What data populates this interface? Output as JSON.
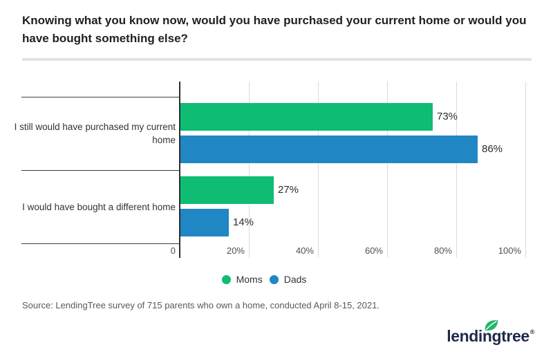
{
  "header": {
    "title": "Knowing what you know now, would you have purchased your current home or would you have bought something else?"
  },
  "chart_data": {
    "type": "bar",
    "orientation": "horizontal",
    "title": "Knowing what you know now, would you have purchased your current home or would you have bought something else?",
    "categories": [
      "I still would have purchased my current home",
      "I would have bought a different home"
    ],
    "series": [
      {
        "name": "Moms",
        "color": "#0ebc74",
        "values": [
          73,
          27
        ],
        "display": [
          "73%",
          "27%"
        ]
      },
      {
        "name": "Dads",
        "color": "#2186c4",
        "values": [
          86,
          14
        ],
        "display": [
          "86%",
          "14%"
        ]
      }
    ],
    "xlim": [
      0,
      100
    ],
    "x_ticks": [
      {
        "value": 0,
        "label": "0"
      },
      {
        "value": 20,
        "label": "20%"
      },
      {
        "value": 40,
        "label": "40%"
      },
      {
        "value": 60,
        "label": "60%"
      },
      {
        "value": 80,
        "label": "80%"
      },
      {
        "value": 100,
        "label": "100%"
      }
    ],
    "grid": "vertical",
    "legend_position": "bottom"
  },
  "footer": {
    "source": "Source: LendingTree survey of 715 parents who own a home, conducted April 8-15, 2021.",
    "logo_text": "lendingtree",
    "logo_registered": "®",
    "logo_leaf_icon": "leaf-icon",
    "logo_navy": "#1d2b49",
    "logo_leaf_green": "#25b56e"
  }
}
